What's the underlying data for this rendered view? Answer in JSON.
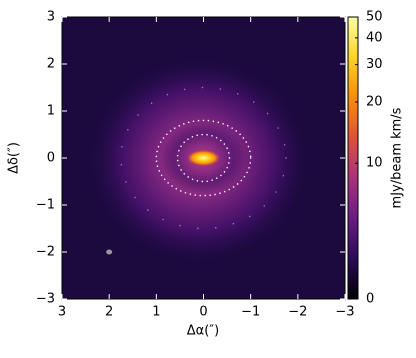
{
  "chart_data": {
    "type": "image",
    "xlabel": "Δα(″)",
    "ylabel": "Δδ(″)",
    "xlim": [
      3,
      -3
    ],
    "ylim": [
      -3,
      3
    ],
    "xticks": [
      3,
      2,
      1,
      0,
      {
        "value": -1,
        "label": "−1"
      },
      {
        "value": -2,
        "label": "−2"
      },
      {
        "value": -3,
        "label": "−3"
      }
    ],
    "yticks": [
      {
        "value": -3,
        "label": "−3"
      },
      {
        "value": -2,
        "label": "−2"
      },
      {
        "value": -1,
        "label": "−1"
      },
      0,
      1,
      2,
      3
    ],
    "colorbar": {
      "label": "mJy/beam km/s",
      "lim": [
        0,
        50
      ],
      "ticks": [
        0,
        10,
        20,
        30,
        40,
        50
      ],
      "scale": "asinh",
      "colormap": [
        "#000004",
        "#2a0b57",
        "#6a1a83",
        "#a8327d",
        "#dd513a",
        "#f98e09",
        "#fcd225",
        "#fcffa4"
      ]
    }
  }
}
